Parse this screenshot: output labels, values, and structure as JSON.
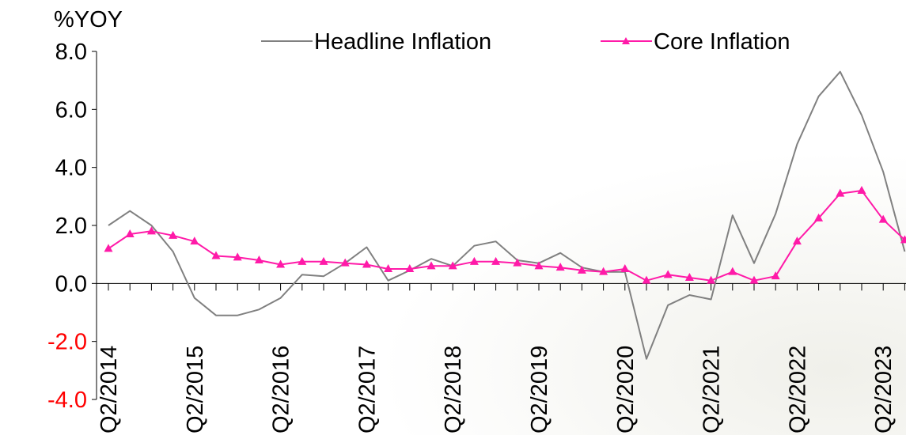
{
  "chart_data": {
    "type": "line",
    "ylabel": "%YOY",
    "ylim": [
      -4.0,
      8.0
    ],
    "y_ticks": [
      {
        "value": 8.0,
        "label": "8.0"
      },
      {
        "value": 6.0,
        "label": "6.0"
      },
      {
        "value": 4.0,
        "label": "4.0"
      },
      {
        "value": 2.0,
        "label": "2.0"
      },
      {
        "value": 0.0,
        "label": "0.0"
      },
      {
        "value": -2.0,
        "label": "-2.0"
      },
      {
        "value": -4.0,
        "label": "-4.0"
      }
    ],
    "negative_tick_color": "#ff0000",
    "legend_position": "top",
    "x_tick_labels": [
      {
        "index": 0,
        "label": "Q2/2014"
      },
      {
        "index": 4,
        "label": "Q2/2015"
      },
      {
        "index": 8,
        "label": "Q2/2016"
      },
      {
        "index": 12,
        "label": "Q2/2017"
      },
      {
        "index": 16,
        "label": "Q2/2018"
      },
      {
        "index": 20,
        "label": "Q2/2019"
      },
      {
        "index": 24,
        "label": "Q2/2020"
      },
      {
        "index": 28,
        "label": "Q2/2021"
      },
      {
        "index": 32,
        "label": "Q2/2022"
      },
      {
        "index": 36,
        "label": "Q2/2023"
      }
    ],
    "series": [
      {
        "name": "Headline Inflation",
        "color": "#808080",
        "marker": "none",
        "values": [
          2.0,
          2.5,
          2.0,
          1.1,
          -0.5,
          -1.1,
          -1.1,
          -0.9,
          -0.5,
          0.3,
          0.25,
          0.7,
          1.25,
          0.1,
          0.45,
          0.85,
          0.6,
          1.3,
          1.45,
          0.8,
          0.7,
          1.05,
          0.55,
          0.4,
          0.4,
          -2.6,
          -0.75,
          -0.4,
          -0.55,
          2.35,
          0.7,
          2.4,
          4.8,
          6.45,
          7.3,
          5.8,
          3.85,
          1.1
        ]
      },
      {
        "name": "Core Inflation",
        "color": "#ff1aa8",
        "marker": "triangle",
        "values": [
          1.2,
          1.7,
          1.8,
          1.65,
          1.45,
          0.95,
          0.9,
          0.8,
          0.65,
          0.75,
          0.75,
          0.7,
          0.65,
          0.5,
          0.5,
          0.6,
          0.6,
          0.75,
          0.75,
          0.7,
          0.6,
          0.55,
          0.45,
          0.4,
          0.5,
          0.1,
          0.3,
          0.2,
          0.1,
          0.4,
          0.1,
          0.25,
          1.45,
          2.25,
          3.1,
          3.2,
          2.2,
          1.5
        ]
      }
    ]
  }
}
